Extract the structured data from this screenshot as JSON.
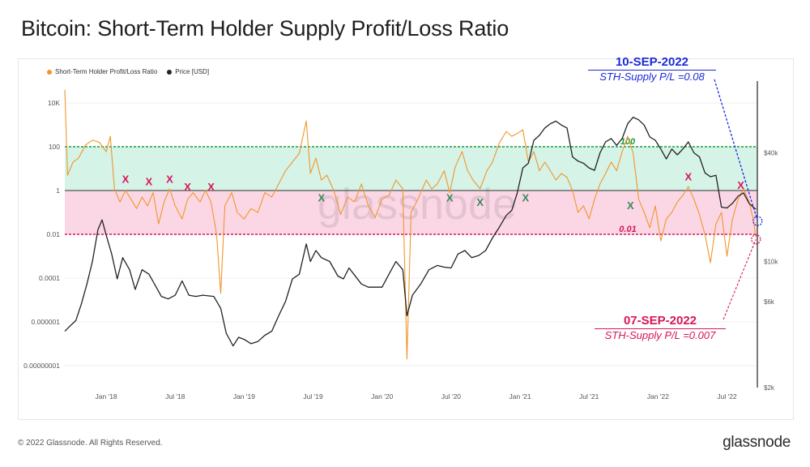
{
  "title": "Bitcoin: Short-Term Holder Supply Profit/Loss Ratio",
  "footer": {
    "copyright": "© 2022 Glassnode. All Rights Reserved.",
    "brand": "glassnode"
  },
  "watermark": "glassnode",
  "annotations": {
    "top": {
      "date": "10-SEP-2022",
      "value": "STH-Supply P/L =0.08"
    },
    "bottom": {
      "date": "07-SEP-2022",
      "value": "STH-Supply P/L =0.007"
    }
  },
  "colors": {
    "ratio": "#f0962a",
    "price": "#222222",
    "upper_band": "#d6f3e8",
    "lower_band": "#fbd7e6",
    "upper_line": "#1a9b3a",
    "lower_line": "#d8165a",
    "blue": "#1a2ad6",
    "pink": "#d8165a",
    "green_x": "#3a8a5a"
  },
  "chart_data": {
    "type": "line",
    "title": "Bitcoin: Short-Term Holder Supply Profit/Loss Ratio",
    "legend": [
      "Short-Term Holder Profit/Loss Ratio",
      "Price [USD]"
    ],
    "x_range": [
      2017.7,
      2022.72
    ],
    "x_ticks": [
      {
        "label": "Jan '18",
        "t": 2018.0
      },
      {
        "label": "Jul '18",
        "t": 2018.5
      },
      {
        "label": "Jan '19",
        "t": 2019.0
      },
      {
        "label": "Jul '19",
        "t": 2019.5
      },
      {
        "label": "Jan '20",
        "t": 2020.0
      },
      {
        "label": "Jul '20",
        "t": 2020.5
      },
      {
        "label": "Jan '21",
        "t": 2021.0
      },
      {
        "label": "Jul '21",
        "t": 2021.5
      },
      {
        "label": "Jan '22",
        "t": 2022.0
      },
      {
        "label": "Jul '22",
        "t": 2022.5
      }
    ],
    "y_left": {
      "scale": "log",
      "range": [
        1e-09,
        100000
      ],
      "ticks": [
        {
          "label": "10K",
          "v": 10000
        },
        {
          "label": "100",
          "v": 100
        },
        {
          "label": "1",
          "v": 1
        },
        {
          "label": "0.01",
          "v": 0.01
        },
        {
          "label": "0.0001",
          "v": 0.0001
        },
        {
          "label": "0.000001",
          "v": 1e-06
        },
        {
          "label": "0.00000001",
          "v": 1e-08
        }
      ]
    },
    "y_right": {
      "scale": "log",
      "range": [
        2000,
        100000
      ],
      "ticks": [
        {
          "label": "$40k",
          "v": 40000
        },
        {
          "label": "$10k",
          "v": 10000
        },
        {
          "label": "$6k",
          "v": 6000
        },
        {
          "label": "$2k",
          "v": 2000
        }
      ]
    },
    "bands": [
      {
        "name": "upper",
        "from": 1,
        "to": 100,
        "label": "100"
      },
      {
        "name": "lower",
        "from": 0.01,
        "to": 1,
        "label": "0.01"
      }
    ],
    "markers_red": [
      {
        "t": 2018.14,
        "v": 3.2
      },
      {
        "t": 2018.31,
        "v": 2.4
      },
      {
        "t": 2018.46,
        "v": 3.2
      },
      {
        "t": 2018.59,
        "v": 1.4
      },
      {
        "t": 2018.76,
        "v": 1.4
      },
      {
        "t": 2022.22,
        "v": 4.0
      },
      {
        "t": 2022.6,
        "v": 1.7
      }
    ],
    "markers_green": [
      {
        "t": 2019.56,
        "v": 0.45
      },
      {
        "t": 2020.49,
        "v": 0.45
      },
      {
        "t": 2020.71,
        "v": 0.28
      },
      {
        "t": 2021.04,
        "v": 0.45
      },
      {
        "t": 2021.8,
        "v": 0.2
      }
    ],
    "series": [
      {
        "name": "Short-Term Holder Profit/Loss Ratio",
        "axis": "left",
        "points": [
          [
            2017.7,
            40000
          ],
          [
            2017.72,
            5
          ],
          [
            2017.76,
            20
          ],
          [
            2017.8,
            30
          ],
          [
            2017.85,
            120
          ],
          [
            2017.9,
            200
          ],
          [
            2017.95,
            160
          ],
          [
            2018.0,
            60
          ],
          [
            2018.03,
            300
          ],
          [
            2018.06,
            1.2
          ],
          [
            2018.1,
            0.3
          ],
          [
            2018.14,
            1.0
          ],
          [
            2018.18,
            0.4
          ],
          [
            2018.22,
            0.15
          ],
          [
            2018.26,
            0.5
          ],
          [
            2018.3,
            0.2
          ],
          [
            2018.34,
            0.8
          ],
          [
            2018.38,
            0.03
          ],
          [
            2018.42,
            0.3
          ],
          [
            2018.46,
            1.2
          ],
          [
            2018.5,
            0.2
          ],
          [
            2018.55,
            0.05
          ],
          [
            2018.59,
            0.4
          ],
          [
            2018.63,
            0.8
          ],
          [
            2018.68,
            0.3
          ],
          [
            2018.72,
            1.0
          ],
          [
            2018.76,
            0.3
          ],
          [
            2018.8,
            0.01
          ],
          [
            2018.83,
            2e-05
          ],
          [
            2018.86,
            0.2
          ],
          [
            2018.91,
            0.8
          ],
          [
            2018.95,
            0.1
          ],
          [
            2019.0,
            0.05
          ],
          [
            2019.05,
            0.15
          ],
          [
            2019.1,
            0.1
          ],
          [
            2019.15,
            0.8
          ],
          [
            2019.2,
            0.5
          ],
          [
            2019.25,
            2
          ],
          [
            2019.3,
            8
          ],
          [
            2019.35,
            20
          ],
          [
            2019.4,
            50
          ],
          [
            2019.45,
            1500
          ],
          [
            2019.48,
            6
          ],
          [
            2019.52,
            30
          ],
          [
            2019.56,
            3
          ],
          [
            2019.6,
            5
          ],
          [
            2019.65,
            1
          ],
          [
            2019.7,
            0.08
          ],
          [
            2019.75,
            0.5
          ],
          [
            2019.8,
            0.3
          ],
          [
            2019.85,
            2
          ],
          [
            2019.9,
            0.2
          ],
          [
            2019.95,
            0.06
          ],
          [
            2020.0,
            0.4
          ],
          [
            2020.05,
            0.6
          ],
          [
            2020.1,
            3
          ],
          [
            2020.15,
            1.2
          ],
          [
            2020.18,
            2e-08
          ],
          [
            2020.21,
            0.1
          ],
          [
            2020.26,
            0.4
          ],
          [
            2020.32,
            3
          ],
          [
            2020.36,
            1.2
          ],
          [
            2020.4,
            2
          ],
          [
            2020.45,
            8
          ],
          [
            2020.49,
            0.8
          ],
          [
            2020.53,
            12
          ],
          [
            2020.58,
            60
          ],
          [
            2020.62,
            8
          ],
          [
            2020.66,
            3
          ],
          [
            2020.71,
            1.2
          ],
          [
            2020.76,
            8
          ],
          [
            2020.8,
            20
          ],
          [
            2020.85,
            150
          ],
          [
            2020.9,
            500
          ],
          [
            2020.94,
            300
          ],
          [
            2020.98,
            400
          ],
          [
            2021.02,
            600
          ],
          [
            2021.06,
            20
          ],
          [
            2021.1,
            60
          ],
          [
            2021.14,
            8
          ],
          [
            2021.18,
            20
          ],
          [
            2021.22,
            8
          ],
          [
            2021.26,
            3
          ],
          [
            2021.3,
            6
          ],
          [
            2021.34,
            4
          ],
          [
            2021.38,
            1
          ],
          [
            2021.42,
            0.1
          ],
          [
            2021.46,
            0.2
          ],
          [
            2021.5,
            0.05
          ],
          [
            2021.54,
            0.4
          ],
          [
            2021.58,
            2
          ],
          [
            2021.62,
            6
          ],
          [
            2021.66,
            20
          ],
          [
            2021.7,
            8
          ],
          [
            2021.74,
            60
          ],
          [
            2021.78,
            300
          ],
          [
            2021.82,
            50
          ],
          [
            2021.86,
            0.4
          ],
          [
            2021.9,
            0.1
          ],
          [
            2021.94,
            0.02
          ],
          [
            2021.98,
            0.2
          ],
          [
            2022.02,
            0.005
          ],
          [
            2022.06,
            0.05
          ],
          [
            2022.1,
            0.1
          ],
          [
            2022.14,
            0.3
          ],
          [
            2022.18,
            0.6
          ],
          [
            2022.22,
            1.5
          ],
          [
            2022.26,
            0.4
          ],
          [
            2022.3,
            0.08
          ],
          [
            2022.34,
            0.01
          ],
          [
            2022.38,
            0.0005
          ],
          [
            2022.42,
            0.03
          ],
          [
            2022.46,
            0.1
          ],
          [
            2022.5,
            0.001
          ],
          [
            2022.54,
            0.05
          ],
          [
            2022.58,
            0.4
          ],
          [
            2022.62,
            1.2
          ],
          [
            2022.66,
            0.3
          ],
          [
            2022.69,
            0.05
          ],
          [
            2022.71,
            0.007
          ]
        ]
      },
      {
        "name": "Price [USD]",
        "axis": "right",
        "points": [
          [
            2017.7,
            4100
          ],
          [
            2017.74,
            4400
          ],
          [
            2017.78,
            4700
          ],
          [
            2017.82,
            5800
          ],
          [
            2017.86,
            7500
          ],
          [
            2017.9,
            10000
          ],
          [
            2017.94,
            15000
          ],
          [
            2017.97,
            17000
          ],
          [
            2018.0,
            14000
          ],
          [
            2018.04,
            11000
          ],
          [
            2018.08,
            8000
          ],
          [
            2018.12,
            10500
          ],
          [
            2018.17,
            9000
          ],
          [
            2018.21,
            7000
          ],
          [
            2018.26,
            9000
          ],
          [
            2018.31,
            8500
          ],
          [
            2018.35,
            7500
          ],
          [
            2018.4,
            6400
          ],
          [
            2018.45,
            6200
          ],
          [
            2018.5,
            6500
          ],
          [
            2018.55,
            7800
          ],
          [
            2018.6,
            6500
          ],
          [
            2018.65,
            6400
          ],
          [
            2018.7,
            6500
          ],
          [
            2018.78,
            6400
          ],
          [
            2018.83,
            5500
          ],
          [
            2018.87,
            4000
          ],
          [
            2018.92,
            3400
          ],
          [
            2018.96,
            3800
          ],
          [
            2019.0,
            3700
          ],
          [
            2019.05,
            3500
          ],
          [
            2019.1,
            3600
          ],
          [
            2019.15,
            3900
          ],
          [
            2019.2,
            4100
          ],
          [
            2019.25,
            5000
          ],
          [
            2019.3,
            6000
          ],
          [
            2019.35,
            8000
          ],
          [
            2019.4,
            8500
          ],
          [
            2019.45,
            12500
          ],
          [
            2019.48,
            10000
          ],
          [
            2019.52,
            11500
          ],
          [
            2019.56,
            10500
          ],
          [
            2019.62,
            10000
          ],
          [
            2019.68,
            8300
          ],
          [
            2019.72,
            8000
          ],
          [
            2019.76,
            9200
          ],
          [
            2019.8,
            8400
          ],
          [
            2019.85,
            7500
          ],
          [
            2019.9,
            7200
          ],
          [
            2019.95,
            7200
          ],
          [
            2020.0,
            7200
          ],
          [
            2020.05,
            8500
          ],
          [
            2020.1,
            10000
          ],
          [
            2020.15,
            9000
          ],
          [
            2020.18,
            5000
          ],
          [
            2020.22,
            6500
          ],
          [
            2020.28,
            7500
          ],
          [
            2020.34,
            9000
          ],
          [
            2020.4,
            9500
          ],
          [
            2020.45,
            9300
          ],
          [
            2020.5,
            9200
          ],
          [
            2020.55,
            11000
          ],
          [
            2020.6,
            11500
          ],
          [
            2020.65,
            10500
          ],
          [
            2020.7,
            10800
          ],
          [
            2020.75,
            11500
          ],
          [
            2020.8,
            13500
          ],
          [
            2020.85,
            15500
          ],
          [
            2020.9,
            18000
          ],
          [
            2020.94,
            19200
          ],
          [
            2020.98,
            24000
          ],
          [
            2021.02,
            33000
          ],
          [
            2021.06,
            35000
          ],
          [
            2021.1,
            47000
          ],
          [
            2021.14,
            50000
          ],
          [
            2021.18,
            55000
          ],
          [
            2021.22,
            58000
          ],
          [
            2021.26,
            60000
          ],
          [
            2021.3,
            57000
          ],
          [
            2021.34,
            55000
          ],
          [
            2021.38,
            38000
          ],
          [
            2021.42,
            36000
          ],
          [
            2021.46,
            35000
          ],
          [
            2021.5,
            33000
          ],
          [
            2021.54,
            32000
          ],
          [
            2021.58,
            40000
          ],
          [
            2021.62,
            46000
          ],
          [
            2021.66,
            48000
          ],
          [
            2021.7,
            44000
          ],
          [
            2021.74,
            48000
          ],
          [
            2021.78,
            58000
          ],
          [
            2021.82,
            63000
          ],
          [
            2021.86,
            61000
          ],
          [
            2021.9,
            57000
          ],
          [
            2021.94,
            49000
          ],
          [
            2021.98,
            47000
          ],
          [
            2022.02,
            42000
          ],
          [
            2022.06,
            37000
          ],
          [
            2022.1,
            42000
          ],
          [
            2022.14,
            39000
          ],
          [
            2022.18,
            42000
          ],
          [
            2022.22,
            46000
          ],
          [
            2022.26,
            40000
          ],
          [
            2022.3,
            38000
          ],
          [
            2022.34,
            31000
          ],
          [
            2022.38,
            29500
          ],
          [
            2022.42,
            30000
          ],
          [
            2022.46,
            20000
          ],
          [
            2022.5,
            19800
          ],
          [
            2022.54,
            21000
          ],
          [
            2022.58,
            23000
          ],
          [
            2022.62,
            24000
          ],
          [
            2022.66,
            21000
          ],
          [
            2022.69,
            20000
          ],
          [
            2022.71,
            19500
          ]
        ]
      }
    ]
  }
}
